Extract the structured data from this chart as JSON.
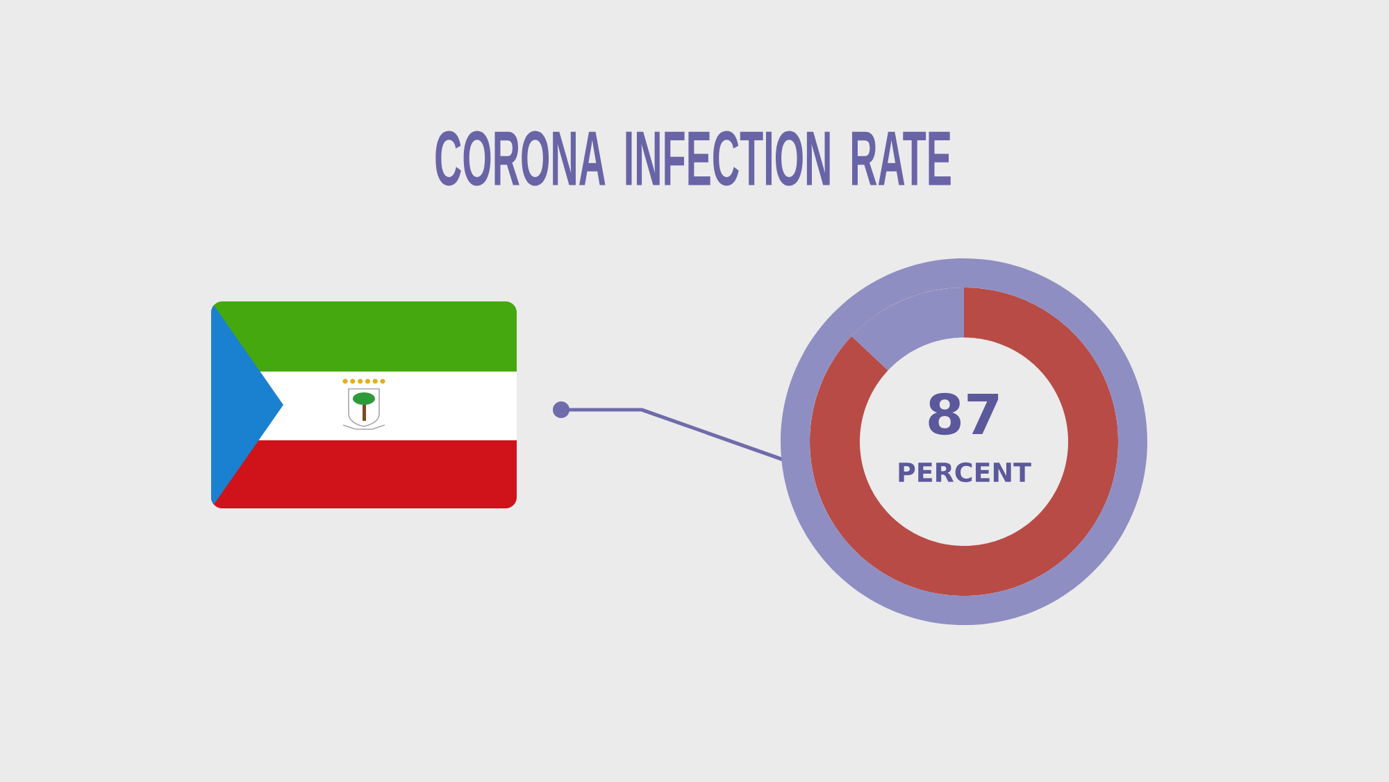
{
  "chart_data": {
    "type": "donut",
    "title": "CORONA INFECTION RATE",
    "categories": [
      null,
      null
    ],
    "values": [
      87,
      13
    ],
    "colors": [
      "#b84b46",
      "#8f8ec2"
    ],
    "value_labels": [
      "87",
      null
    ],
    "annotations": [
      "PERCENT"
    ]
  }
}
